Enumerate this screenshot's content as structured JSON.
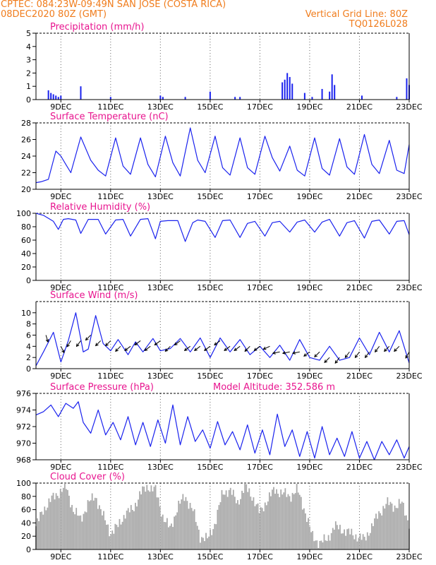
{
  "header": {
    "line1_left": "CPTEC:   084:23W-09:49N   SAN JOSE (COSTA RICA)",
    "line2_left": "08DEC2020 80Z (GMT)",
    "line2_right": "Vertical Grid Line: 80Z",
    "line3_right": "TQ0126L028"
  },
  "colors": {
    "header": "#f07c1c",
    "titles": "#e8158f",
    "series": "#1a22ee",
    "cloud": "#a9a9a9",
    "wind_arrows": "#000000"
  },
  "x_tick_labels": [
    "9DEC",
    "11DEC",
    "13DEC",
    "15DEC",
    "17DEC",
    "19DEC",
    "21DEC",
    "23DEC"
  ],
  "chart_data": [
    {
      "type": "bar",
      "title": "Precipitation (mm/h)",
      "ylim": [
        0,
        5
      ],
      "yticks": [
        0,
        1,
        2,
        3,
        4,
        5
      ],
      "grid": "vertical-dashed",
      "x": [
        8.5,
        8.6,
        8.7,
        8.8,
        8.9,
        9.0,
        9.8,
        11.0,
        13.0,
        13.1,
        14.0,
        15.0,
        16.0,
        16.2,
        17.9,
        18.0,
        18.1,
        18.2,
        18.3,
        18.8,
        19.1,
        19.5,
        19.8,
        19.9,
        20.0,
        21.1,
        22.5,
        22.9,
        23.0
      ],
      "values": [
        0.7,
        0.5,
        0.4,
        0.3,
        0.2,
        0.3,
        1.0,
        0.2,
        0.3,
        0.2,
        0.2,
        0.6,
        0.2,
        0.2,
        1.3,
        1.5,
        2.0,
        1.7,
        1.2,
        0.5,
        0.2,
        0.8,
        0.6,
        1.9,
        1.1,
        0.3,
        0.2,
        1.6,
        1.1
      ]
    },
    {
      "type": "line",
      "title": "Surface Temperature (nC)",
      "ylim": [
        20,
        28
      ],
      "yticks": [
        20,
        22,
        24,
        26,
        28
      ],
      "x": [
        8.0,
        8.2,
        8.5,
        8.8,
        9.0,
        9.2,
        9.4,
        9.8,
        10.2,
        10.5,
        10.8,
        11.2,
        11.5,
        11.8,
        12.2,
        12.5,
        12.8,
        13.2,
        13.5,
        13.8,
        14.2,
        14.5,
        14.8,
        15.2,
        15.5,
        15.8,
        16.2,
        16.5,
        16.8,
        17.2,
        17.5,
        17.8,
        18.2,
        18.5,
        18.8,
        19.2,
        19.5,
        19.8,
        20.2,
        20.5,
        20.8,
        21.2,
        21.5,
        21.8,
        22.2,
        22.5,
        22.8,
        23.0
      ],
      "values": [
        20.8,
        20.9,
        21.2,
        24.6,
        24.0,
        23.0,
        22.0,
        26.3,
        23.5,
        22.3,
        21.6,
        26.2,
        22.8,
        21.8,
        26.2,
        23.0,
        21.5,
        26.4,
        23.2,
        21.6,
        27.4,
        23.5,
        22.0,
        26.4,
        22.6,
        21.7,
        26.2,
        22.6,
        21.8,
        26.4,
        23.8,
        22.2,
        25.2,
        22.3,
        21.6,
        26.2,
        22.5,
        21.7,
        26.1,
        22.7,
        21.8,
        26.6,
        23.0,
        21.9,
        25.9,
        22.3,
        21.9,
        25.4
      ]
    },
    {
      "type": "line",
      "title": "Relative Humidity (%)",
      "ylim": [
        0,
        100
      ],
      "yticks": [
        0,
        20,
        40,
        60,
        80,
        100
      ],
      "x": [
        8.0,
        8.3,
        8.7,
        8.9,
        9.1,
        9.3,
        9.6,
        9.8,
        10.1,
        10.5,
        10.8,
        11.2,
        11.5,
        11.8,
        12.2,
        12.5,
        12.8,
        13.0,
        13.3,
        13.7,
        14.0,
        14.3,
        14.5,
        14.8,
        15.2,
        15.5,
        15.8,
        16.2,
        16.5,
        16.8,
        17.2,
        17.5,
        17.8,
        18.2,
        18.5,
        18.8,
        19.2,
        19.5,
        19.8,
        20.2,
        20.5,
        20.8,
        21.2,
        21.5,
        21.8,
        22.2,
        22.5,
        22.8,
        23.0
      ],
      "values": [
        100,
        97,
        88,
        76,
        91,
        92,
        90,
        70,
        91,
        91,
        69,
        90,
        91,
        66,
        91,
        92,
        62,
        88,
        89,
        89,
        58,
        86,
        90,
        88,
        64,
        89,
        90,
        64,
        85,
        88,
        66,
        86,
        88,
        72,
        87,
        90,
        72,
        87,
        91,
        66,
        86,
        89,
        63,
        88,
        90,
        69,
        88,
        89,
        68
      ]
    },
    {
      "type": "line",
      "title": "Surface Wind (m/s)",
      "ylim": [
        0,
        12
      ],
      "yticks": [
        0,
        2,
        4,
        6,
        8,
        10
      ],
      "x": [
        8.0,
        8.3,
        8.7,
        9.0,
        9.3,
        9.6,
        9.9,
        10.1,
        10.4,
        10.7,
        11.0,
        11.3,
        11.7,
        12.0,
        12.3,
        12.7,
        13.0,
        13.4,
        13.8,
        14.2,
        14.6,
        15.0,
        15.4,
        15.8,
        16.2,
        16.6,
        17.0,
        17.4,
        17.8,
        18.2,
        18.6,
        19.0,
        19.4,
        19.8,
        20.2,
        20.6,
        21.0,
        21.4,
        21.8,
        22.2,
        22.6,
        23.0
      ],
      "values": [
        0.5,
        3.0,
        6.5,
        1.2,
        5.0,
        10.0,
        3.0,
        3.5,
        9.5,
        4.5,
        3.2,
        5.2,
        2.5,
        4.8,
        3.0,
        5.4,
        3.2,
        3.6,
        5.4,
        3.0,
        5.5,
        2.0,
        5.5,
        3.0,
        5.2,
        2.5,
        4.0,
        2.0,
        4.2,
        1.5,
        5.2,
        2.0,
        1.5,
        4.0,
        1.5,
        2.0,
        5.5,
        2.5,
        6.5,
        3.0,
        6.8,
        1.0
      ],
      "wind_vectors": {
        "x": [
          8.4,
          9.0,
          9.4,
          9.8,
          10.2,
          10.6,
          11.0,
          11.4,
          11.8,
          12.2,
          12.6,
          13.0,
          13.4,
          13.8,
          14.2,
          14.6,
          15.0,
          15.4,
          15.8,
          16.2,
          16.6,
          17.0,
          17.4,
          17.8,
          18.2,
          18.6,
          19.0,
          19.4,
          19.8,
          20.2,
          20.6,
          21.0,
          21.4,
          21.8,
          22.2,
          22.6,
          23.0
        ],
        "speed": [
          6,
          4,
          5,
          5,
          6,
          5,
          5,
          4,
          4,
          5,
          4,
          5,
          4,
          5,
          4,
          4,
          4,
          5,
          4,
          4,
          4,
          4,
          4,
          3,
          3,
          3,
          3,
          3,
          2,
          2,
          3,
          3,
          3,
          4,
          4,
          4,
          3
        ],
        "u": [
          0.3,
          0.5,
          -0.5,
          -0.6,
          -0.7,
          -0.7,
          -0.7,
          -0.7,
          -0.8,
          -0.8,
          -0.8,
          -0.8,
          -0.7,
          -0.8,
          -0.8,
          -0.8,
          -0.8,
          -0.8,
          -0.8,
          -0.8,
          -0.7,
          -0.8,
          -0.9,
          -1.0,
          -1.0,
          -1.0,
          -0.8,
          -0.7,
          -0.7,
          -0.6,
          -0.6,
          -0.6,
          -0.6,
          -0.6,
          -0.7,
          -0.7,
          -0.5
        ],
        "v": [
          -1.0,
          -1.0,
          -0.8,
          -0.8,
          -0.7,
          -0.7,
          -0.7,
          -0.7,
          -0.6,
          -0.6,
          -0.6,
          -0.6,
          -0.7,
          -0.6,
          -0.6,
          -0.6,
          -0.6,
          -0.6,
          -0.6,
          -0.6,
          -0.7,
          -0.6,
          -0.4,
          -0.2,
          -0.2,
          -0.2,
          -0.6,
          -0.7,
          -0.7,
          -0.8,
          -0.8,
          -0.8,
          -0.8,
          -0.8,
          -0.7,
          -0.7,
          -0.9
        ]
      }
    },
    {
      "type": "line",
      "title": "Surface Pressure (hPa)",
      "annotation": "Model Altitude: 352.586 m",
      "ylim": [
        968,
        976
      ],
      "yticks": [
        968,
        970,
        972,
        974,
        976
      ],
      "x": [
        8.0,
        8.3,
        8.6,
        8.9,
        9.2,
        9.5,
        9.7,
        9.9,
        10.2,
        10.5,
        10.8,
        11.1,
        11.4,
        11.7,
        12.0,
        12.3,
        12.6,
        12.9,
        13.2,
        13.5,
        13.8,
        14.1,
        14.4,
        14.7,
        15.0,
        15.3,
        15.6,
        15.9,
        16.2,
        16.5,
        16.8,
        17.1,
        17.4,
        17.7,
        18.0,
        18.3,
        18.6,
        18.9,
        19.2,
        19.5,
        19.8,
        20.1,
        20.4,
        20.7,
        21.0,
        21.3,
        21.6,
        21.9,
        22.2,
        22.5,
        22.8,
        23.0
      ],
      "values": [
        973.4,
        973.8,
        974.6,
        973.2,
        974.8,
        974.2,
        975.0,
        972.5,
        971.2,
        974.0,
        971.0,
        972.5,
        970.4,
        973.2,
        969.8,
        972.5,
        969.6,
        972.8,
        970.0,
        974.6,
        969.8,
        973.2,
        970.2,
        971.6,
        969.4,
        972.6,
        969.8,
        971.4,
        969.2,
        972.2,
        968.8,
        971.6,
        968.6,
        973.5,
        969.6,
        971.6,
        968.4,
        971.4,
        968.2,
        972.0,
        968.6,
        970.6,
        968.4,
        971.4,
        968.2,
        970.2,
        968.0,
        970.2,
        968.6,
        970.4,
        968.2,
        969.6
      ]
    },
    {
      "type": "area",
      "title": "Cloud Cover (%)",
      "ylim": [
        0,
        100
      ],
      "yticks": [
        0,
        20,
        40,
        60,
        80,
        100
      ],
      "x": [
        8.0,
        8.3,
        8.6,
        8.9,
        9.2,
        9.5,
        9.8,
        10.1,
        10.4,
        10.7,
        11.0,
        11.3,
        11.6,
        11.9,
        12.2,
        12.5,
        12.8,
        13.1,
        13.4,
        13.7,
        14.0,
        14.3,
        14.6,
        14.9,
        15.2,
        15.5,
        15.8,
        16.1,
        16.4,
        16.7,
        17.0,
        17.3,
        17.6,
        17.9,
        18.2,
        18.5,
        18.8,
        19.1,
        19.4,
        19.7,
        20.0,
        20.3,
        20.6,
        20.9,
        21.2,
        21.5,
        21.8,
        22.1,
        22.4,
        22.7,
        23.0
      ],
      "values": [
        35,
        60,
        75,
        85,
        95,
        60,
        45,
        70,
        80,
        50,
        25,
        35,
        55,
        60,
        85,
        95,
        90,
        50,
        30,
        65,
        80,
        60,
        20,
        15,
        40,
        85,
        90,
        70,
        95,
        80,
        55,
        75,
        90,
        85,
        80,
        90,
        60,
        20,
        10,
        15,
        35,
        30,
        25,
        20,
        15,
        35,
        55,
        70,
        65,
        70,
        40
      ]
    }
  ]
}
